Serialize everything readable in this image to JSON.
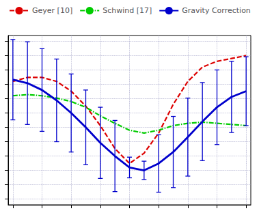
{
  "chart_data": {
    "type": "line",
    "x": [
      -0.5,
      -0.4375,
      -0.375,
      -0.3125,
      -0.25,
      -0.1875,
      -0.125,
      -0.0625,
      0.0,
      0.0625,
      0.125,
      0.1875,
      0.25,
      0.3125,
      0.375,
      0.4375,
      0.5
    ],
    "series": [
      {
        "name": "Geyer [10]",
        "color": "#dd0000",
        "line_style": "dashed",
        "values": [
          0.55,
          0.62,
          0.62,
          0.55,
          0.38,
          0.12,
          -0.22,
          -0.62,
          -0.88,
          -0.7,
          -0.35,
          0.15,
          0.55,
          0.8,
          0.9,
          0.95,
          1.0
        ]
      },
      {
        "name": "Schwind [17]",
        "color": "#00cc00",
        "line_style": "dashdot",
        "values": [
          0.3,
          0.32,
          0.3,
          0.26,
          0.2,
          0.1,
          -0.05,
          -0.18,
          -0.3,
          -0.35,
          -0.3,
          -0.22,
          -0.18,
          -0.16,
          -0.18,
          -0.2,
          -0.22
        ]
      },
      {
        "name": "Gravity Correction",
        "color": "#0000cc",
        "line_style": "solid",
        "values": [
          0.58,
          0.52,
          0.4,
          0.22,
          0.0,
          -0.25,
          -0.52,
          -0.75,
          -0.95,
          -1.0,
          -0.88,
          -0.68,
          -0.42,
          -0.15,
          0.1,
          0.28,
          0.38
        ],
        "yerr": [
          0.7,
          0.72,
          0.72,
          0.72,
          0.68,
          0.65,
          0.62,
          0.62,
          0.18,
          0.16,
          0.5,
          0.62,
          0.68,
          0.68,
          0.65,
          0.62,
          0.6
        ]
      }
    ],
    "xlim": [
      -0.52,
      0.52
    ],
    "ylim": [
      -1.6,
      1.35
    ],
    "xticks": [
      -0.5,
      -0.375,
      -0.25,
      -0.125,
      0.0,
      0.125,
      0.25,
      0.375,
      0.5
    ],
    "yticks": [
      -1.5,
      -1.25,
      -1.0,
      -0.75,
      -0.5,
      -0.25,
      0.0,
      0.25,
      0.5,
      0.75,
      1.0,
      1.25
    ],
    "grid": true,
    "legend": "upper left",
    "tick_labels": false
  }
}
